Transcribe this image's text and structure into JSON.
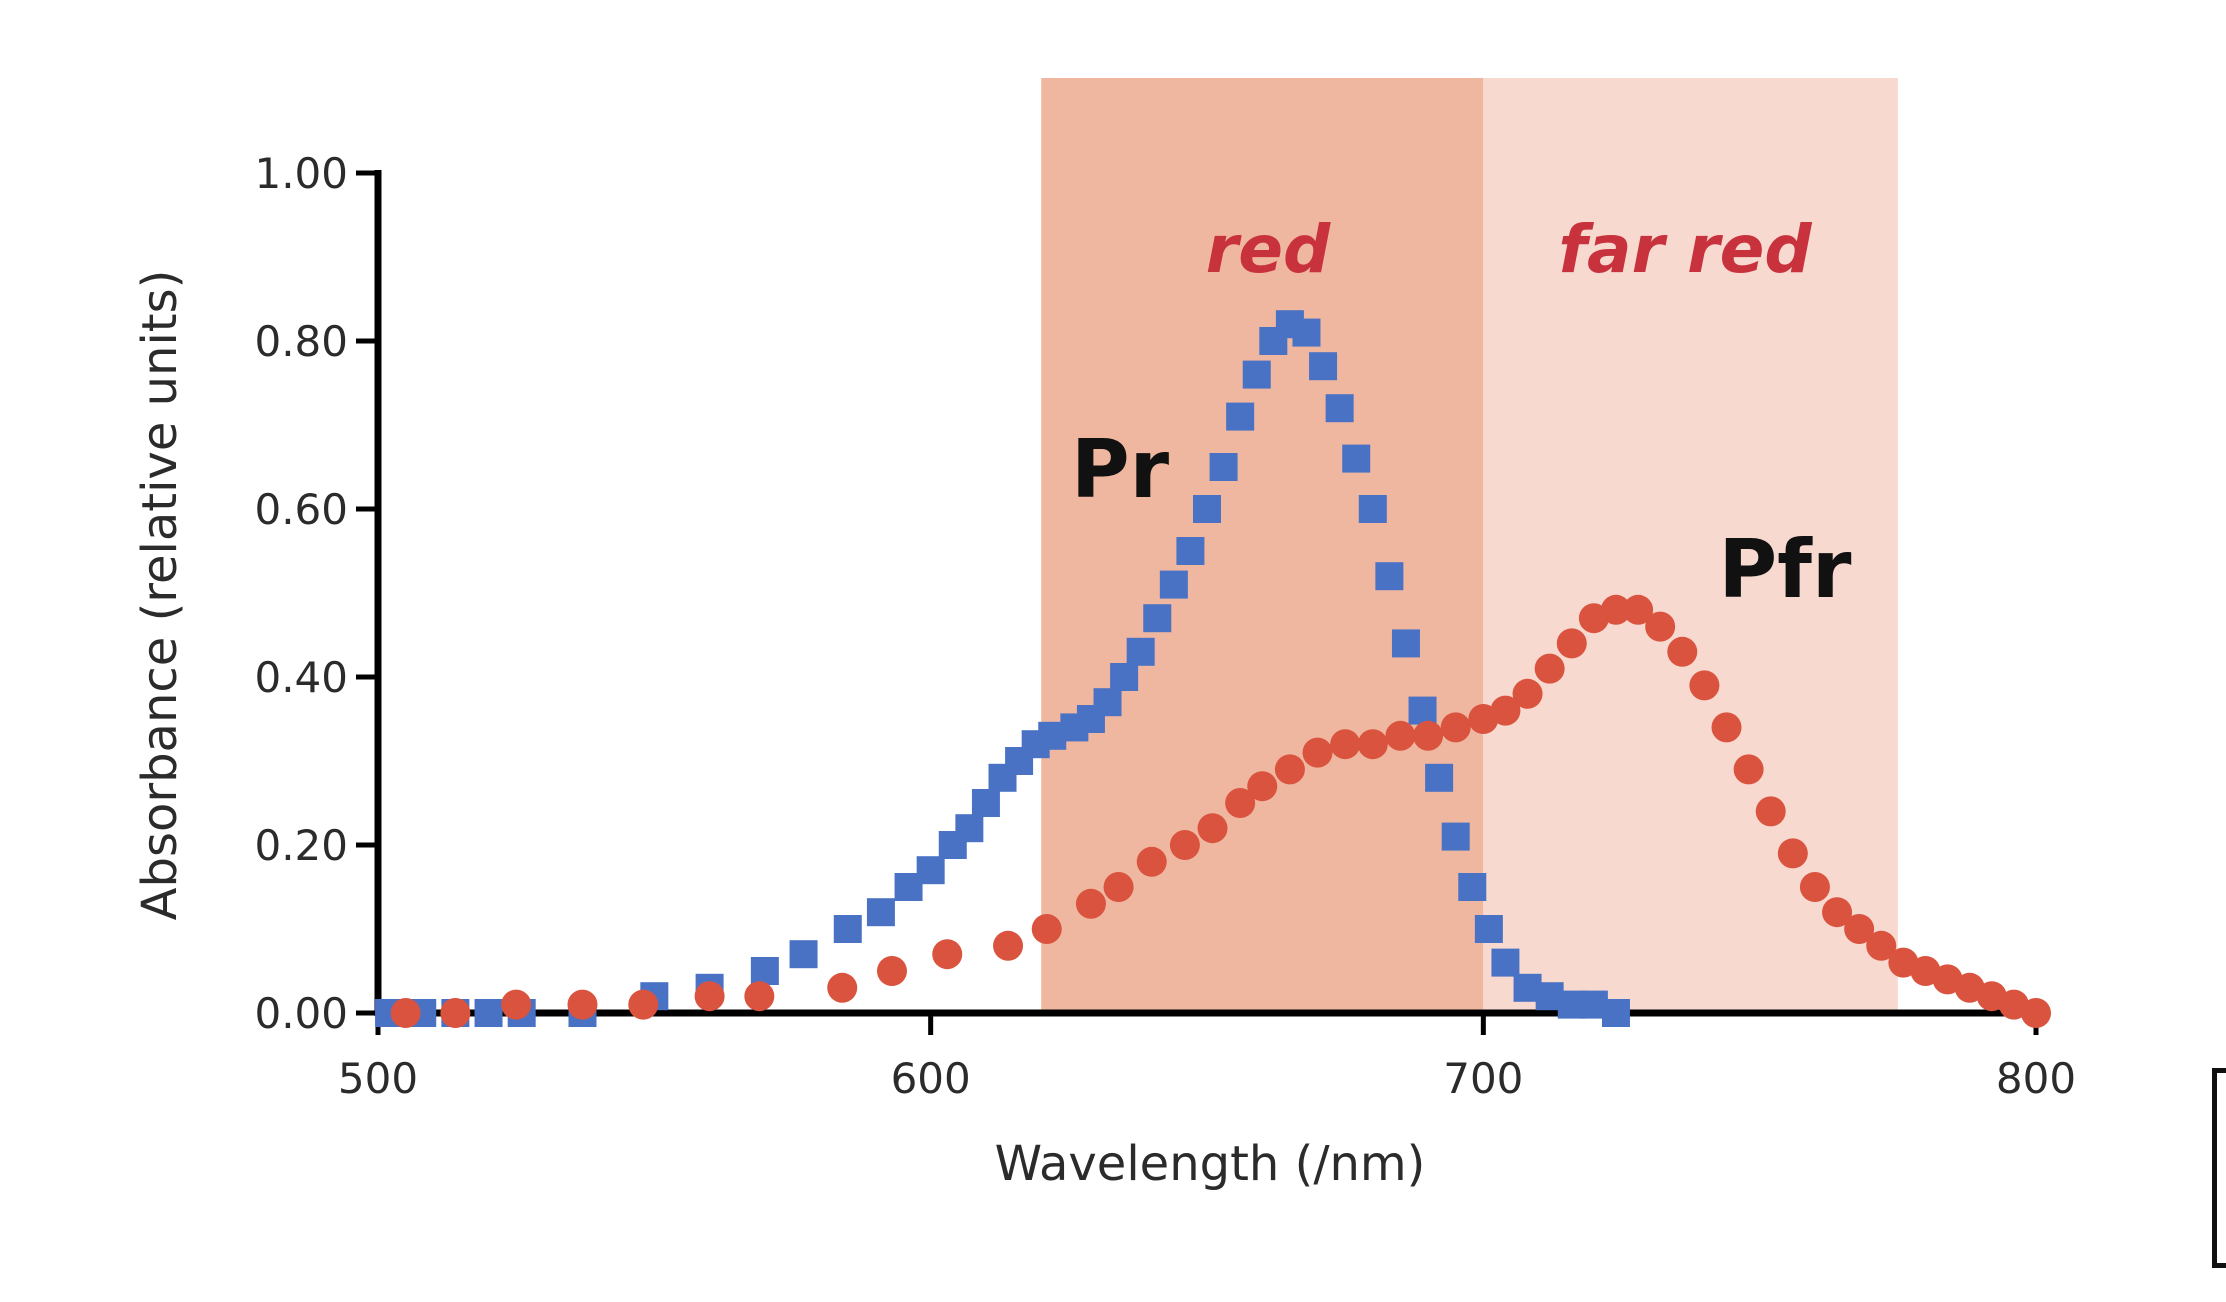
{
  "chart_data": {
    "type": "scatter",
    "xlabel": "Wavelength (/nm)",
    "ylabel": "Absorbance (relative units)",
    "xlim": [
      500,
      800
    ],
    "ylim": [
      0,
      1.0
    ],
    "x_ticks": [
      "500",
      "600",
      "700",
      "800"
    ],
    "y_ticks": [
      "0.00",
      "0.20",
      "0.40",
      "0.60",
      "0.80",
      "1.00"
    ],
    "grid": false,
    "bands": [
      {
        "label": "red",
        "x_start": 620,
        "x_end": 700,
        "color": "#efb7a0"
      },
      {
        "label": "far red",
        "x_start": 700,
        "x_end": 775,
        "color": "#f8d9d0"
      }
    ],
    "series": [
      {
        "name": "Pr",
        "color": "#4a72c4",
        "marker": "square",
        "points": [
          [
            502,
            0.0
          ],
          [
            508,
            0.0
          ],
          [
            514,
            0.0
          ],
          [
            520,
            0.0
          ],
          [
            526,
            0.0
          ],
          [
            537,
            0.0
          ],
          [
            550,
            0.02
          ],
          [
            560,
            0.03
          ],
          [
            570,
            0.05
          ],
          [
            577,
            0.07
          ],
          [
            585,
            0.1
          ],
          [
            591,
            0.12
          ],
          [
            596,
            0.15
          ],
          [
            600,
            0.17
          ],
          [
            604,
            0.2
          ],
          [
            607,
            0.22
          ],
          [
            610,
            0.25
          ],
          [
            613,
            0.28
          ],
          [
            616,
            0.3
          ],
          [
            619,
            0.32
          ],
          [
            622,
            0.33
          ],
          [
            626,
            0.34
          ],
          [
            629,
            0.35
          ],
          [
            632,
            0.37
          ],
          [
            635,
            0.4
          ],
          [
            638,
            0.43
          ],
          [
            641,
            0.47
          ],
          [
            644,
            0.51
          ],
          [
            647,
            0.55
          ],
          [
            650,
            0.6
          ],
          [
            653,
            0.65
          ],
          [
            656,
            0.71
          ],
          [
            659,
            0.76
          ],
          [
            662,
            0.8
          ],
          [
            665,
            0.82
          ],
          [
            668,
            0.81
          ],
          [
            671,
            0.77
          ],
          [
            674,
            0.72
          ],
          [
            677,
            0.66
          ],
          [
            680,
            0.6
          ],
          [
            683,
            0.52
          ],
          [
            686,
            0.44
          ],
          [
            689,
            0.36
          ],
          [
            692,
            0.28
          ],
          [
            695,
            0.21
          ],
          [
            698,
            0.15
          ],
          [
            701,
            0.1
          ],
          [
            704,
            0.06
          ],
          [
            708,
            0.03
          ],
          [
            712,
            0.02
          ],
          [
            716,
            0.01
          ],
          [
            720,
            0.01
          ],
          [
            724,
            0.0
          ]
        ]
      },
      {
        "name": "Pfr",
        "color": "#d9533e",
        "marker": "circle",
        "points": [
          [
            505,
            0.0
          ],
          [
            514,
            0.0
          ],
          [
            525,
            0.01
          ],
          [
            537,
            0.01
          ],
          [
            548,
            0.01
          ],
          [
            560,
            0.02
          ],
          [
            569,
            0.02
          ],
          [
            584,
            0.03
          ],
          [
            593,
            0.05
          ],
          [
            603,
            0.07
          ],
          [
            614,
            0.08
          ],
          [
            621,
            0.1
          ],
          [
            629,
            0.13
          ],
          [
            634,
            0.15
          ],
          [
            640,
            0.18
          ],
          [
            646,
            0.2
          ],
          [
            651,
            0.22
          ],
          [
            656,
            0.25
          ],
          [
            660,
            0.27
          ],
          [
            665,
            0.29
          ],
          [
            670,
            0.31
          ],
          [
            675,
            0.32
          ],
          [
            680,
            0.32
          ],
          [
            685,
            0.33
          ],
          [
            690,
            0.33
          ],
          [
            695,
            0.34
          ],
          [
            700,
            0.35
          ],
          [
            704,
            0.36
          ],
          [
            708,
            0.38
          ],
          [
            712,
            0.41
          ],
          [
            716,
            0.44
          ],
          [
            720,
            0.47
          ],
          [
            724,
            0.48
          ],
          [
            728,
            0.48
          ],
          [
            732,
            0.46
          ],
          [
            736,
            0.43
          ],
          [
            740,
            0.39
          ],
          [
            744,
            0.34
          ],
          [
            748,
            0.29
          ],
          [
            752,
            0.24
          ],
          [
            756,
            0.19
          ],
          [
            760,
            0.15
          ],
          [
            764,
            0.12
          ],
          [
            768,
            0.1
          ],
          [
            772,
            0.08
          ],
          [
            776,
            0.06
          ],
          [
            780,
            0.05
          ],
          [
            784,
            0.04
          ],
          [
            788,
            0.03
          ],
          [
            792,
            0.02
          ],
          [
            796,
            0.01
          ],
          [
            800,
            0.0
          ]
        ]
      }
    ]
  }
}
